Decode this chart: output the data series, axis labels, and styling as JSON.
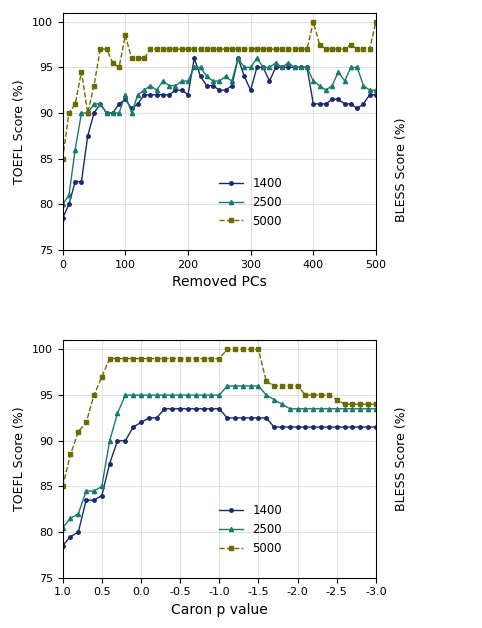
{
  "color_1400": "#1a2a6c",
  "color_2500": "#1a7a6c",
  "color_5000": "#6b6b00",
  "ylabel_left": "TOEFL Score (%)",
  "ylabel_right": "BLESS Score (%)",
  "xlabel_top": "Removed PCs",
  "xlabel_bottom": "Caron p value",
  "ylim": [
    75,
    101
  ],
  "yticks": [
    75,
    80,
    85,
    90,
    95,
    100
  ],
  "top_x": [
    0,
    10,
    20,
    30,
    40,
    50,
    60,
    70,
    80,
    90,
    100,
    110,
    120,
    130,
    140,
    150,
    160,
    170,
    180,
    190,
    200,
    210,
    220,
    230,
    240,
    250,
    260,
    270,
    280,
    290,
    300,
    310,
    320,
    330,
    340,
    350,
    360,
    370,
    380,
    390,
    400,
    410,
    420,
    430,
    440,
    450,
    460,
    470,
    480,
    490,
    500
  ],
  "top_1400": [
    78.5,
    80.0,
    82.5,
    82.5,
    87.5,
    90.0,
    91.0,
    90.0,
    90.0,
    91.0,
    91.5,
    90.5,
    91.0,
    92.0,
    92.0,
    92.0,
    92.0,
    92.0,
    92.5,
    92.5,
    92.0,
    96.0,
    94.0,
    93.0,
    93.0,
    92.5,
    92.5,
    93.0,
    96.0,
    94.0,
    92.5,
    95.0,
    95.0,
    93.5,
    95.0,
    95.0,
    95.0,
    95.0,
    95.0,
    95.0,
    91.0,
    91.0,
    91.0,
    91.5,
    91.5,
    91.0,
    91.0,
    90.5,
    91.0,
    92.0,
    92.0
  ],
  "top_2500": [
    80.0,
    81.0,
    86.0,
    90.0,
    90.0,
    91.0,
    91.0,
    90.0,
    90.0,
    90.0,
    92.0,
    90.0,
    92.0,
    92.5,
    93.0,
    92.5,
    93.5,
    93.0,
    93.0,
    93.5,
    93.5,
    95.0,
    95.0,
    94.0,
    93.5,
    93.5,
    94.0,
    93.5,
    96.0,
    95.0,
    95.0,
    96.0,
    95.0,
    95.0,
    95.5,
    95.0,
    95.5,
    95.0,
    95.0,
    95.0,
    93.5,
    93.0,
    92.5,
    93.0,
    94.5,
    93.5,
    95.0,
    95.0,
    93.0,
    92.5,
    92.5
  ],
  "top_5000": [
    85.0,
    90.0,
    91.0,
    94.5,
    90.0,
    93.0,
    97.0,
    97.0,
    95.5,
    95.0,
    98.5,
    96.0,
    96.0,
    96.0,
    97.0,
    97.0,
    97.0,
    97.0,
    97.0,
    97.0,
    97.0,
    97.0,
    97.0,
    97.0,
    97.0,
    97.0,
    97.0,
    97.0,
    97.0,
    97.0,
    97.0,
    97.0,
    97.0,
    97.0,
    97.0,
    97.0,
    97.0,
    97.0,
    97.0,
    97.0,
    100.0,
    97.5,
    97.0,
    97.0,
    97.0,
    97.0,
    97.5,
    97.0,
    97.0,
    97.0,
    100.0
  ],
  "bottom_x": [
    1.0,
    0.9,
    0.8,
    0.7,
    0.6,
    0.5,
    0.4,
    0.3,
    0.2,
    0.1,
    0.0,
    -0.1,
    -0.2,
    -0.3,
    -0.4,
    -0.5,
    -0.6,
    -0.7,
    -0.8,
    -0.9,
    -1.0,
    -1.1,
    -1.2,
    -1.3,
    -1.4,
    -1.5,
    -1.6,
    -1.7,
    -1.8,
    -1.9,
    -2.0,
    -2.1,
    -2.2,
    -2.3,
    -2.4,
    -2.5,
    -2.6,
    -2.7,
    -2.8,
    -2.9,
    -3.0
  ],
  "bottom_1400": [
    78.5,
    79.5,
    80.0,
    83.5,
    83.5,
    84.0,
    87.5,
    90.0,
    90.0,
    91.5,
    92.0,
    92.5,
    92.5,
    93.5,
    93.5,
    93.5,
    93.5,
    93.5,
    93.5,
    93.5,
    93.5,
    92.5,
    92.5,
    92.5,
    92.5,
    92.5,
    92.5,
    91.5,
    91.5,
    91.5,
    91.5,
    91.5,
    91.5,
    91.5,
    91.5,
    91.5,
    91.5,
    91.5,
    91.5,
    91.5,
    91.5
  ],
  "bottom_2500": [
    80.5,
    81.5,
    82.0,
    84.5,
    84.5,
    85.0,
    90.0,
    93.0,
    95.0,
    95.0,
    95.0,
    95.0,
    95.0,
    95.0,
    95.0,
    95.0,
    95.0,
    95.0,
    95.0,
    95.0,
    95.0,
    96.0,
    96.0,
    96.0,
    96.0,
    96.0,
    95.0,
    94.5,
    94.0,
    93.5,
    93.5,
    93.5,
    93.5,
    93.5,
    93.5,
    93.5,
    93.5,
    93.5,
    93.5,
    93.5,
    93.5
  ],
  "bottom_5000": [
    85.0,
    88.5,
    91.0,
    92.0,
    95.0,
    97.0,
    99.0,
    99.0,
    99.0,
    99.0,
    99.0,
    99.0,
    99.0,
    99.0,
    99.0,
    99.0,
    99.0,
    99.0,
    99.0,
    99.0,
    99.0,
    100.0,
    100.0,
    100.0,
    100.0,
    100.0,
    96.5,
    96.0,
    96.0,
    96.0,
    96.0,
    95.0,
    95.0,
    95.0,
    95.0,
    94.5,
    94.0,
    94.0,
    94.0,
    94.0,
    94.0
  ],
  "legend_labels": [
    "1400",
    "2500",
    "5000"
  ],
  "top_xticks": [
    0,
    100,
    200,
    300,
    400,
    500
  ],
  "bottom_xticks": [
    1.0,
    0.5,
    0.0,
    -0.5,
    -1.0,
    -1.5,
    -2.0,
    -2.5,
    -3.0
  ]
}
